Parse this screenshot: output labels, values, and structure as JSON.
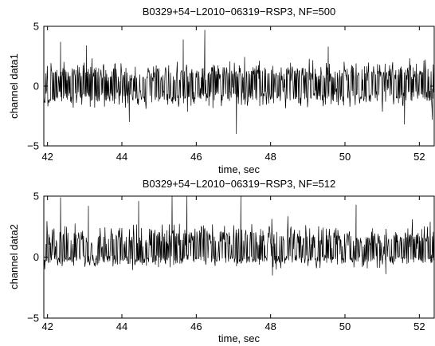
{
  "chart_data": [
    {
      "type": "line",
      "title": "B0329+54−L2010−06319−RSP3, NF=500",
      "xlabel": "time, sec",
      "ylabel": "channel data1",
      "xlim": [
        41.9,
        52.4
      ],
      "ylim": [
        -5,
        5
      ],
      "xticks": [
        42,
        44,
        46,
        48,
        50,
        52
      ],
      "xtick_labels": [
        "42",
        "44",
        "46",
        "48",
        "50",
        "52"
      ],
      "yticks": [
        5,
        0,
        -5
      ],
      "ytick_labels": [
        "5",
        "0",
        "−5"
      ],
      "grid": false,
      "color": "#000000",
      "series": [
        {
          "description_note": "",
          "sample_step_sec": 0.04,
          "x_start": 41.9,
          "noise_center": 0.05,
          "typical_low": -2.0,
          "typical_high": 2.3,
          "extremes": [
            {
              "x": 46.23,
              "y": 4.7
            },
            {
              "x": 42.35,
              "y": 3.7
            },
            {
              "x": 45.65,
              "y": 3.9
            },
            {
              "x": 47.08,
              "y": -4.0
            },
            {
              "x": 44.2,
              "y": -3.0
            },
            {
              "x": 51.6,
              "y": -3.2
            },
            {
              "x": 52.35,
              "y": -2.8
            },
            {
              "x": 43.05,
              "y": 3.4
            },
            {
              "x": 49.55,
              "y": 3.3
            }
          ]
        }
      ]
    },
    {
      "type": "line",
      "title": "B0329+54−L2010−06319−RSP3, NF=512",
      "xlabel": "time, sec",
      "ylabel": "channel data2",
      "xlim": [
        41.9,
        52.4
      ],
      "ylim": [
        -5,
        5
      ],
      "xticks": [
        42,
        44,
        46,
        48,
        50,
        52
      ],
      "xtick_labels": [
        "42",
        "44",
        "46",
        "48",
        "50",
        "52"
      ],
      "yticks": [
        5,
        0,
        -5
      ],
      "ytick_labels": [
        "5",
        "0",
        "−5"
      ],
      "grid": false,
      "color": "#000000",
      "series": [
        {
          "sample_step_sec": 0.04,
          "x_start": 41.9,
          "noise_center": 0.4,
          "typical_low": -0.9,
          "typical_high": 2.9,
          "extremes": [
            {
              "x": 42.35,
              "y": 4.9
            },
            {
              "x": 45.35,
              "y": 5.0
            },
            {
              "x": 45.75,
              "y": 5.0
            },
            {
              "x": 47.2,
              "y": 5.0
            },
            {
              "x": 44.45,
              "y": 4.6
            },
            {
              "x": 48.05,
              "y": -1.5
            },
            {
              "x": 51.1,
              "y": -1.4
            },
            {
              "x": 43.1,
              "y": 4.2
            },
            {
              "x": 50.3,
              "y": 4.3
            }
          ]
        }
      ]
    }
  ]
}
